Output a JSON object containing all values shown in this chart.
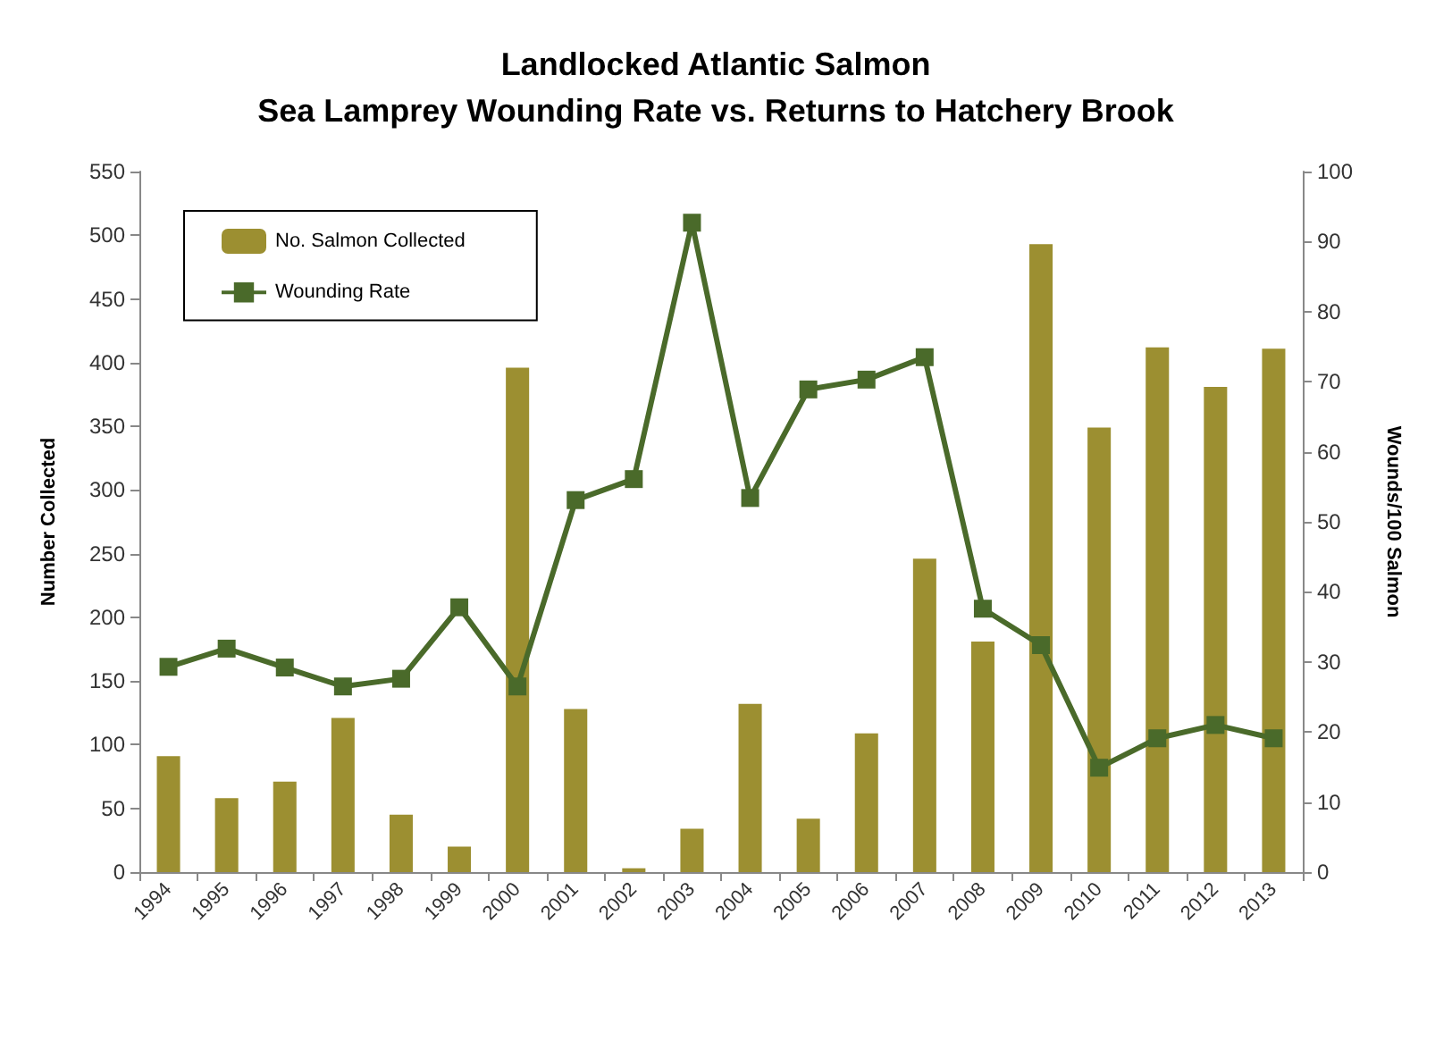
{
  "chart_data": {
    "type": "bar",
    "title": "Landlocked Atlantic Salmon\nSea Lamprey Wounding Rate vs. Returns to Hatchery Brook",
    "ylabel": "Number Collected",
    "y2label": "Wounds/100 Salmon",
    "categories": [
      "1994",
      "1995",
      "1996",
      "1997",
      "1998",
      "1999",
      "2000",
      "2001",
      "2002",
      "2003",
      "2004",
      "2005",
      "2006",
      "2007",
      "2008",
      "2009",
      "2010",
      "2011",
      "2012",
      "2013"
    ],
    "series": [
      {
        "name": "No. Salmon Collected",
        "color": "#9c8f31",
        "values": [
          91,
          58,
          71,
          121,
          45,
          20,
          396,
          128,
          3,
          34,
          132,
          42,
          109,
          246,
          181,
          493,
          349,
          412,
          381,
          411
        ]
      },
      {
        "name": "Wounding Rate",
        "type": "line",
        "axis": "y2",
        "color": "#4a6a2a",
        "marker": "square",
        "values": [
          29.3,
          31.9,
          29.2,
          26.5,
          27.6,
          37.8,
          26.5,
          53.1,
          56.1,
          92.7,
          53.4,
          68.9,
          70.3,
          73.5,
          37.6,
          32.4,
          14.9,
          19.1,
          21.0,
          19.1
        ]
      }
    ],
    "ylim": [
      0,
      550
    ],
    "yticks": [
      0,
      50,
      100,
      150,
      200,
      250,
      300,
      350,
      400,
      450,
      500,
      550
    ],
    "y2lim": [
      0,
      100
    ],
    "y2ticks": [
      0,
      10,
      20,
      30,
      40,
      50,
      60,
      70,
      80,
      90,
      100
    ],
    "grid": false,
    "legend": "top left"
  }
}
